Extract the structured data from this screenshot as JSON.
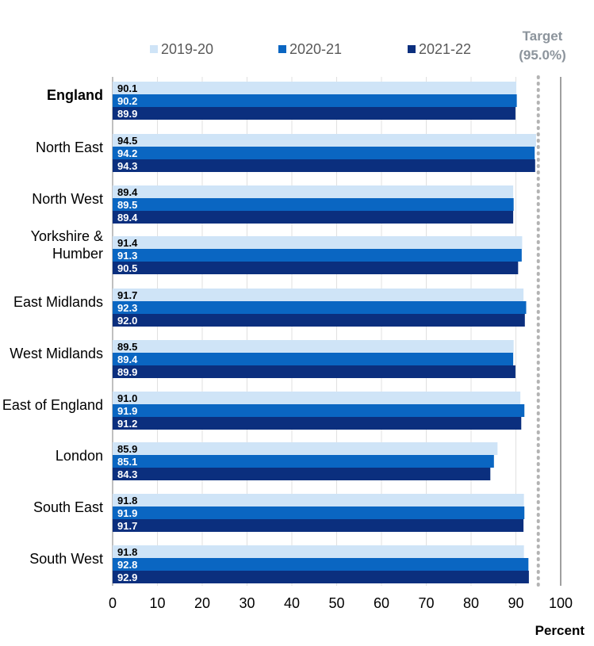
{
  "chart_data": {
    "type": "bar",
    "orientation": "horizontal",
    "categories": [
      "England",
      "North East",
      "North West",
      "Yorkshire & Humber",
      "East Midlands",
      "West Midlands",
      "East of England",
      "London",
      "South East",
      "South West"
    ],
    "category_lines": [
      [
        "England"
      ],
      [
        "North East"
      ],
      [
        "North West"
      ],
      [
        "Yorkshire &",
        "Humber"
      ],
      [
        "East Midlands"
      ],
      [
        "West Midlands"
      ],
      [
        "East of England"
      ],
      [
        "London"
      ],
      [
        "South East"
      ],
      [
        "South West"
      ]
    ],
    "bold_categories": [
      "England"
    ],
    "series": [
      {
        "name": "2019-20",
        "color": "#cfe4f7",
        "label_color": "#000000",
        "values": [
          90.1,
          94.5,
          89.4,
          91.4,
          91.7,
          89.5,
          91.0,
          85.9,
          91.8,
          91.8
        ],
        "labels": [
          "90.1",
          "94.5",
          "89.4",
          "91.4",
          "91.7",
          "89.5",
          "91.0",
          "85.9",
          "91.8",
          "91.8"
        ]
      },
      {
        "name": "2020-21",
        "color": "#0a66c2",
        "label_color": "#ffffff",
        "values": [
          90.2,
          94.2,
          89.5,
          91.3,
          92.3,
          89.4,
          91.9,
          85.1,
          91.9,
          92.8
        ],
        "labels": [
          "90.2",
          "94.2",
          "89.5",
          "91.3",
          "92.3",
          "89.4",
          "91.9",
          "85.1",
          "91.9",
          "92.8"
        ]
      },
      {
        "name": "2021-22",
        "color": "#0b2f7e",
        "label_color": "#ffffff",
        "values": [
          89.9,
          94.3,
          89.4,
          90.5,
          92.0,
          89.9,
          91.2,
          84.3,
          91.7,
          92.9
        ],
        "labels": [
          "89.9",
          "94.3",
          "89.4",
          "90.5",
          "92.0",
          "89.9",
          "91.2",
          "84.3",
          "91.7",
          "92.9"
        ]
      }
    ],
    "xlim": [
      0,
      100
    ],
    "xticks": [
      0,
      10,
      20,
      30,
      40,
      50,
      60,
      70,
      80,
      90,
      100
    ],
    "xlabel": "Percent",
    "ylabel": "",
    "title": "",
    "target": {
      "value": 95.0,
      "label_lines": [
        "Target",
        "(95.0%)"
      ],
      "color": "#b3b3b3"
    },
    "legend": "top",
    "grid": true
  }
}
